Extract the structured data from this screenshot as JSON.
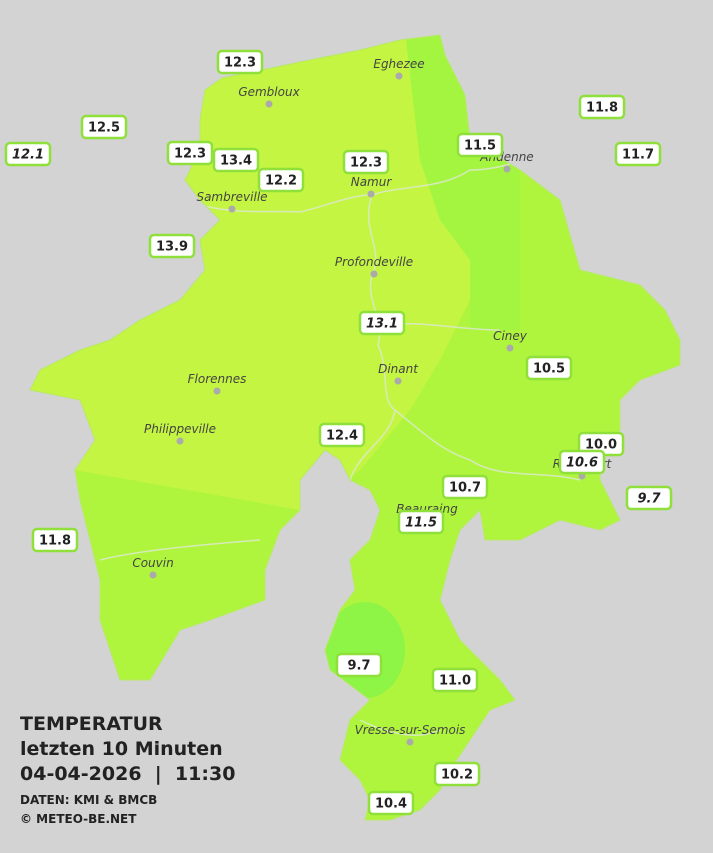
{
  "title": {
    "line1": "TEMPERATUR",
    "line2": "letzten 10 Minuten",
    "line3": "04-04-2026  |  11:30",
    "source": "DATEN: KMI & BMCB",
    "copyright": "© METEO-BE.NET"
  },
  "places": [
    "Eghezee",
    "Gembloux",
    "Andenne",
    "Namur",
    "Sambreville",
    "Profondeville",
    "Ciney",
    "Dinant",
    "Florennes",
    "Philippeville",
    "Rochefort",
    "Beauraing",
    "Couvin",
    "Vresse-sur-Semois"
  ],
  "temperatures": [
    "12.3",
    "12.5",
    "12.1",
    "12.3",
    "13.4",
    "12.2",
    "12.3",
    "11.5",
    "11.8",
    "11.7",
    "13.9",
    "13.1",
    "10.5",
    "12.4",
    "10.0",
    "10.6",
    "9.7",
    "10.7",
    "11.5",
    "11.8",
    "9.7",
    "11.0",
    "10.2",
    "10.4"
  ]
}
